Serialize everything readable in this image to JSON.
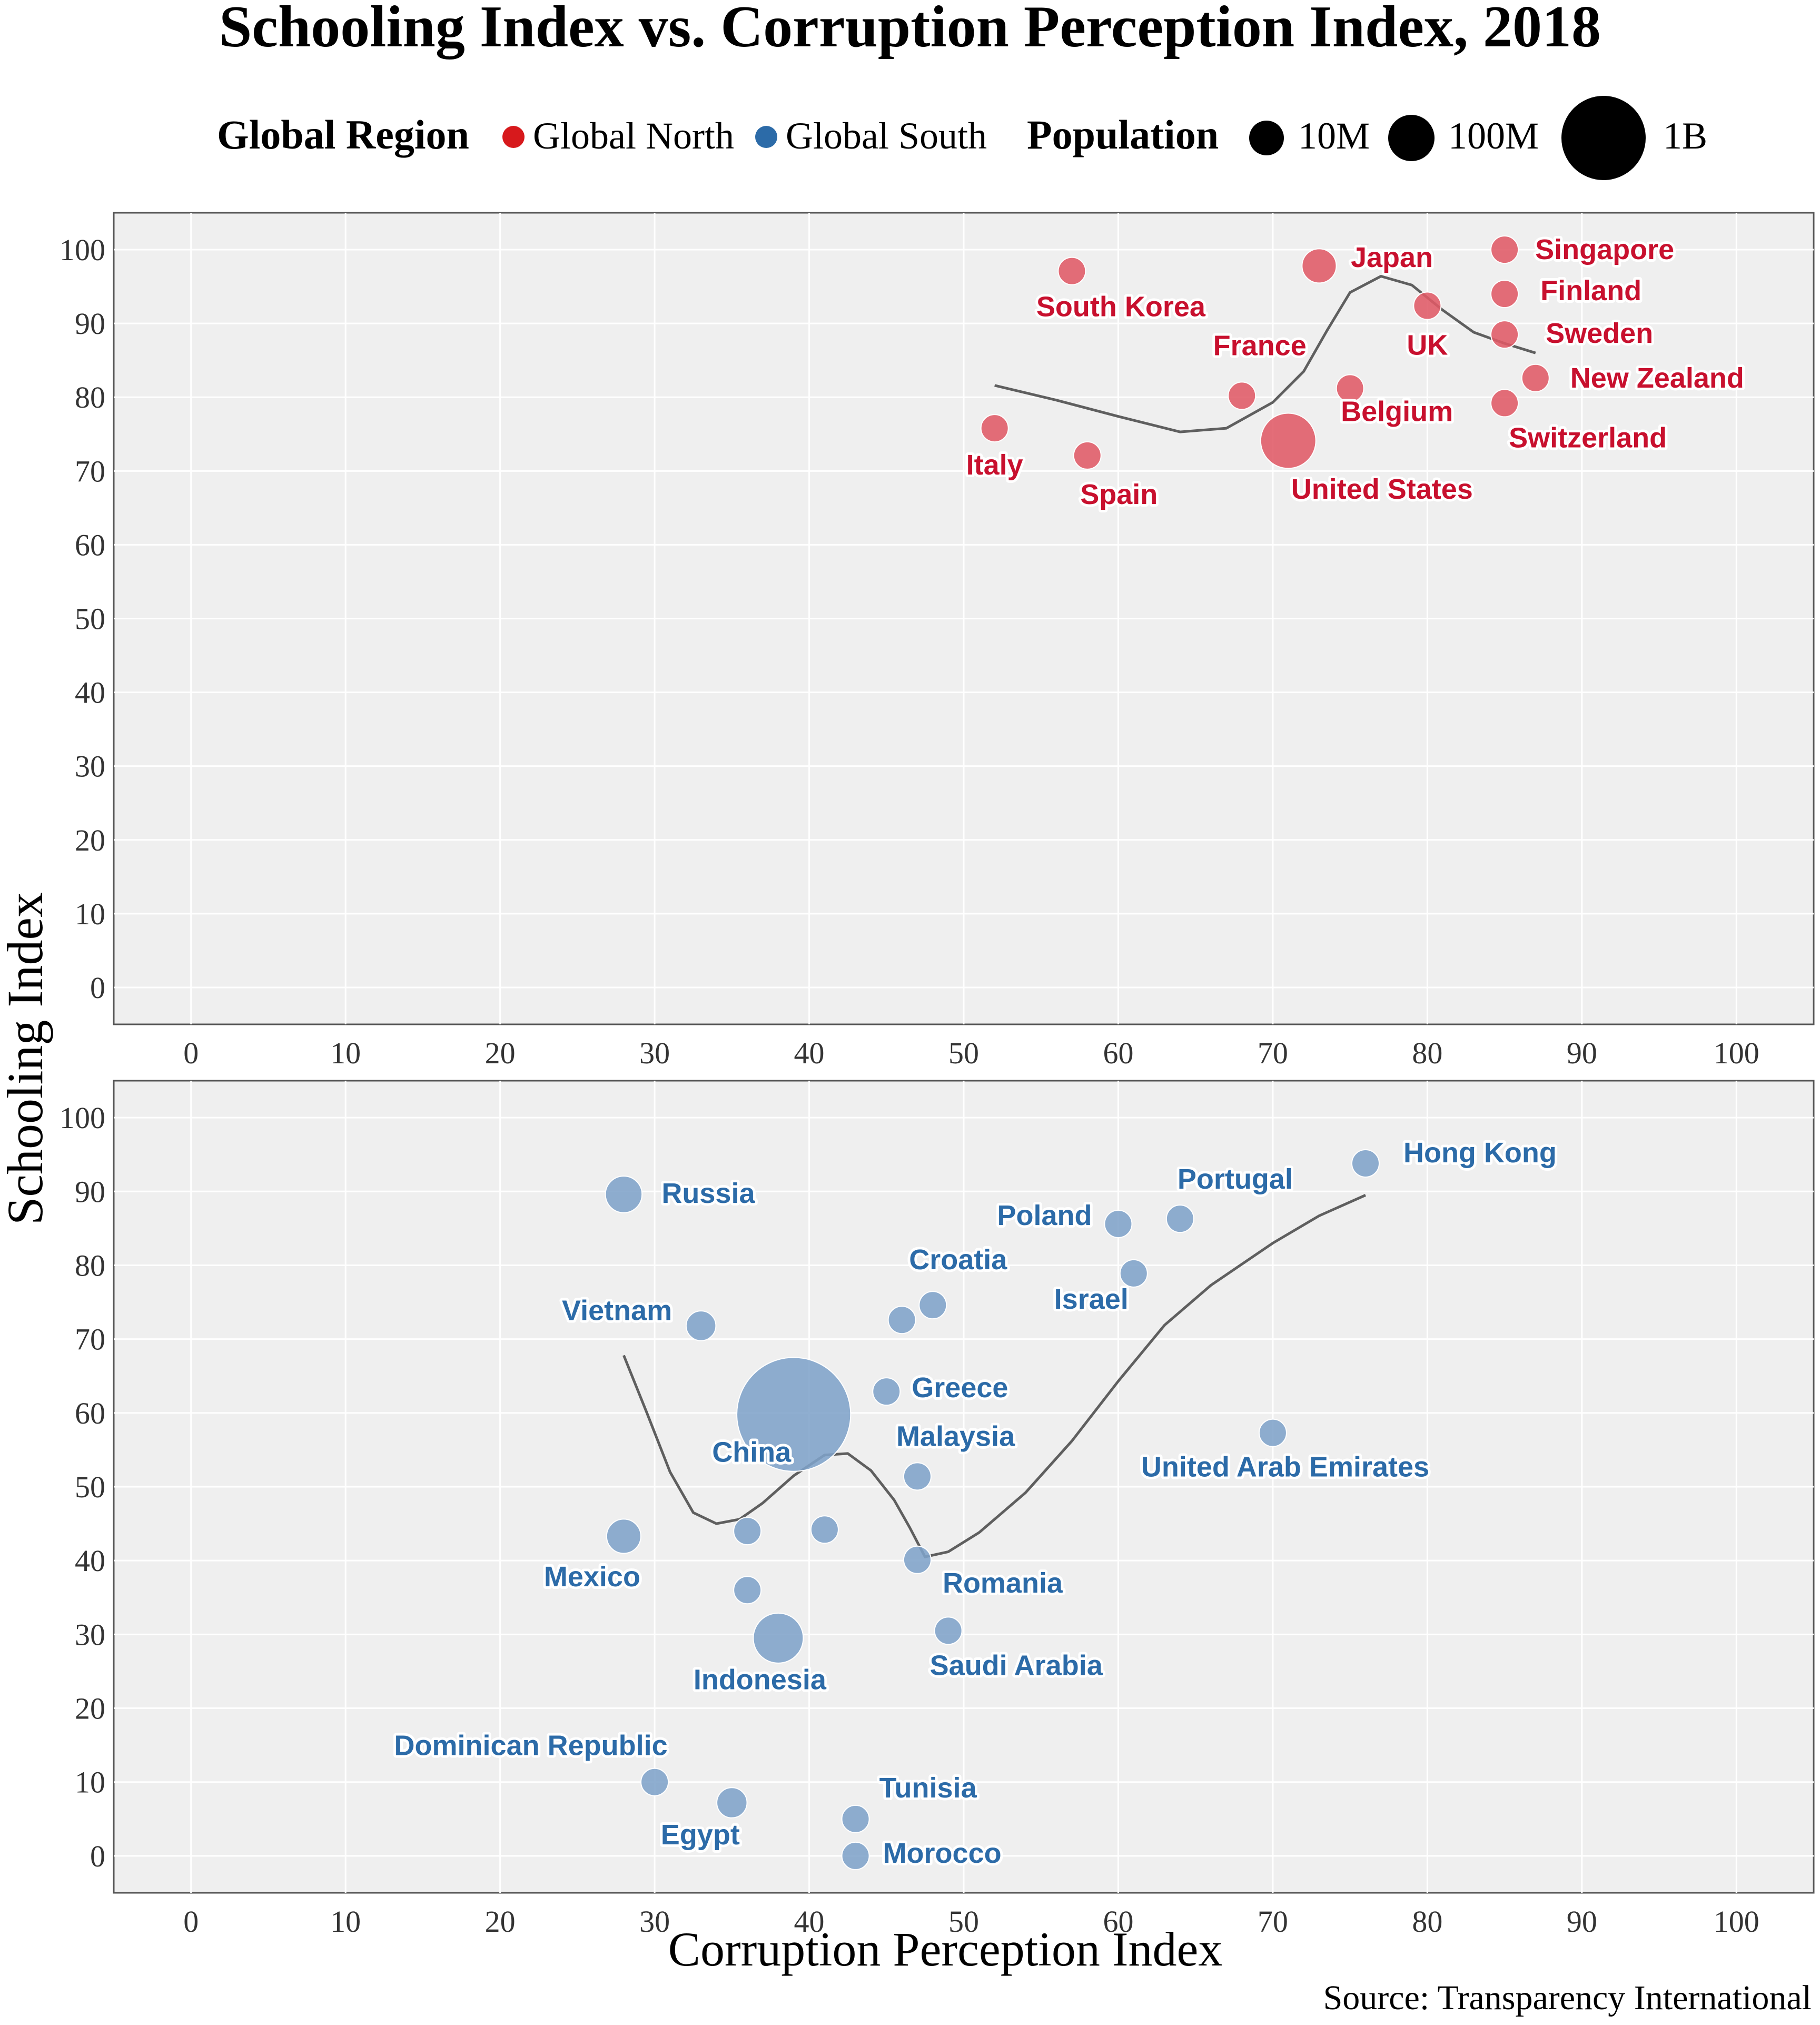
{
  "chart_data": {
    "type": "scatter",
    "title": "Schooling Index vs. Corruption Perception Index, 2018",
    "xlabel": "Corruption Perception Index",
    "ylabel": "Schooling Index",
    "source": "Source: Transparency International",
    "xlim": [
      -5,
      105
    ],
    "ylim": [
      -5,
      105
    ],
    "x_ticks": [
      0,
      10,
      20,
      30,
      40,
      50,
      60,
      70,
      80,
      90,
      100
    ],
    "y_ticks": [
      0,
      10,
      20,
      30,
      40,
      50,
      60,
      70,
      80,
      90,
      100
    ],
    "grid": true,
    "legend": {
      "position": "top",
      "region_title": "Global Region",
      "population_title": "Population",
      "regions": [
        {
          "name": "Global North",
          "color": "#d7191c"
        },
        {
          "name": "Global South",
          "color": "#2c6ba8"
        }
      ],
      "sizes": [
        {
          "label": "10M",
          "population": 10000000
        },
        {
          "label": "100M",
          "population": 100000000
        },
        {
          "label": "1B",
          "population": 1000000000
        }
      ]
    },
    "panels": [
      {
        "region": "Global North",
        "point_color": "#e05a66",
        "label_color": "#c8102e",
        "points": [
          {
            "name": "Singapore",
            "x": 85,
            "y": 100,
            "pop": 5.6
          },
          {
            "name": "Finland",
            "x": 85,
            "y": 94,
            "pop": 5.5
          },
          {
            "name": "Sweden",
            "x": 85,
            "y": 88.5,
            "pop": 10.2
          },
          {
            "name": "New Zealand",
            "x": 87,
            "y": 82.6,
            "pop": 4.9
          },
          {
            "name": "Switzerland",
            "x": 85,
            "y": 79.2,
            "pop": 8.5
          },
          {
            "name": "Japan",
            "x": 73,
            "y": 97.8,
            "pop": 126
          },
          {
            "name": "UK",
            "x": 80,
            "y": 92.4,
            "pop": 66
          },
          {
            "name": "South Korea",
            "x": 57,
            "y": 97.1,
            "pop": 51
          },
          {
            "name": "France",
            "x": 68,
            "y": 80.2,
            "pop": 67
          },
          {
            "name": "Belgium",
            "x": 75,
            "y": 81.2,
            "pop": 11.4
          },
          {
            "name": "Italy",
            "x": 52,
            "y": 75.8,
            "pop": 60
          },
          {
            "name": "Spain",
            "x": 58,
            "y": 72.1,
            "pop": 47
          },
          {
            "name": "United States",
            "x": 71,
            "y": 74.1,
            "pop": 327
          }
        ],
        "trend": [
          [
            52,
            81.6
          ],
          [
            56,
            79.6
          ],
          [
            60,
            77.4
          ],
          [
            64,
            75.3
          ],
          [
            67,
            75.8
          ],
          [
            70,
            79.3
          ],
          [
            72,
            83.5
          ],
          [
            73.5,
            89
          ],
          [
            75,
            94.2
          ],
          [
            77,
            96.4
          ],
          [
            79,
            95.2
          ],
          [
            81,
            91.8
          ],
          [
            83,
            88.8
          ],
          [
            85,
            87.3
          ],
          [
            87,
            86
          ]
        ]
      },
      {
        "region": "Global South",
        "point_color": "#7fa3c9",
        "label_color": "#2c6ba8",
        "points": [
          {
            "name": "Hong Kong",
            "x": 76,
            "y": 93.8,
            "pop": 7.5
          },
          {
            "name": "Portugal",
            "x": 64,
            "y": 86.3,
            "pop": 10.3
          },
          {
            "name": "Poland",
            "x": 60,
            "y": 85.6,
            "pop": 38
          },
          {
            "name": "Israel",
            "x": 61,
            "y": 78.9,
            "pop": 8.9
          },
          {
            "name": "Croatia",
            "x": 48,
            "y": 74.6,
            "pop": 4.1
          },
          {
            "name": "",
            "x": 46,
            "y": 72.6,
            "pop": 10.5
          },
          {
            "name": "Russia",
            "x": 28,
            "y": 89.6,
            "pop": 144
          },
          {
            "name": "Vietnam",
            "x": 33,
            "y": 71.8,
            "pop": 95
          },
          {
            "name": "Greece",
            "x": 45,
            "y": 62.9,
            "pop": 10.7
          },
          {
            "name": "China",
            "x": 39,
            "y": 59.8,
            "pop": 1390
          },
          {
            "name": "Malaysia",
            "x": 47,
            "y": 51.4,
            "pop": 31.5
          },
          {
            "name": "United Arab Emirates",
            "x": 70,
            "y": 57.3,
            "pop": 9.6
          },
          {
            "name": "",
            "x": 36,
            "y": 44,
            "pop": 45
          },
          {
            "name": "",
            "x": 41,
            "y": 44.2,
            "pop": 70
          },
          {
            "name": "Mexico",
            "x": 28,
            "y": 43.3,
            "pop": 126
          },
          {
            "name": "Romania",
            "x": 47,
            "y": 40.1,
            "pop": 19.5
          },
          {
            "name": "",
            "x": 36,
            "y": 36,
            "pop": 70
          },
          {
            "name": "Saudi Arabia",
            "x": 49,
            "y": 30.5,
            "pop": 33.7
          },
          {
            "name": "Indonesia",
            "x": 38,
            "y": 29.5,
            "pop": 268
          },
          {
            "name": "Dominican Republic",
            "x": 30,
            "y": 10,
            "pop": 10.6
          },
          {
            "name": "Egypt",
            "x": 35,
            "y": 7.2,
            "pop": 98
          },
          {
            "name": "Tunisia",
            "x": 43,
            "y": 5,
            "pop": 11.6
          },
          {
            "name": "Morocco",
            "x": 43,
            "y": 0,
            "pop": 36
          }
        ],
        "trend": [
          [
            28,
            67.8
          ],
          [
            29.5,
            60
          ],
          [
            31,
            52
          ],
          [
            32.5,
            46.5
          ],
          [
            34,
            45
          ],
          [
            35.5,
            45.6
          ],
          [
            37,
            47.8
          ],
          [
            39,
            51.5
          ],
          [
            41,
            54.3
          ],
          [
            42.5,
            54.5
          ],
          [
            44,
            52.2
          ],
          [
            45.5,
            48.2
          ],
          [
            46.5,
            44.5
          ],
          [
            47.5,
            40.5
          ],
          [
            49,
            41.2
          ],
          [
            51,
            43.8
          ],
          [
            54,
            49.2
          ],
          [
            57,
            56.2
          ],
          [
            60,
            64.3
          ],
          [
            63,
            71.9
          ],
          [
            66,
            77.3
          ],
          [
            70,
            83
          ],
          [
            73,
            86.7
          ],
          [
            76,
            89.5
          ]
        ]
      }
    ]
  }
}
